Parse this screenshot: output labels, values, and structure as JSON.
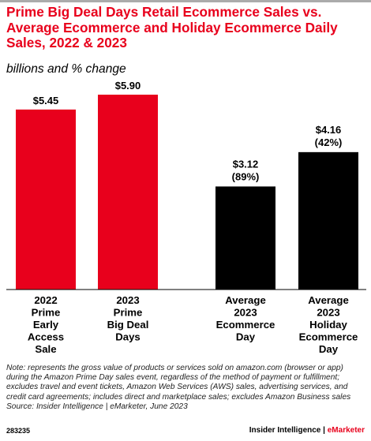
{
  "header": {
    "title": "Prime Big Deal Days Retail Ecommerce Sales vs. Average Ecommerce and Holiday Ecommerce Daily Sales, 2022 & 2023",
    "subtitle": "billions and % change"
  },
  "chart_data": {
    "type": "bar",
    "title": "Prime Big Deal Days Retail Ecommerce Sales vs. Average Ecommerce and Holiday Ecommerce Daily Sales, 2022 & 2023",
    "subtitle": "billions and % change",
    "xlabel": "",
    "ylabel": "",
    "grid": false,
    "categories": [
      [
        "2022",
        "Prime",
        "Early",
        "Access",
        "Sale"
      ],
      [
        "2023",
        "Prime",
        "Big Deal",
        "Days"
      ],
      [
        "Average",
        "2023",
        "Ecommerce",
        "Day"
      ],
      [
        "Average",
        "2023",
        "Holiday",
        "Ecommerce",
        "Day"
      ]
    ],
    "values": [
      5.45,
      5.9,
      3.12,
      4.16
    ],
    "value_labels": [
      "$5.45",
      "$5.90",
      "$3.12",
      "$4.16"
    ],
    "change_labels": [
      "",
      "",
      "(89%)",
      "(42%)"
    ],
    "bar_colors": [
      "#e8001c",
      "#e8001c",
      "#000000",
      "#000000"
    ],
    "ylim": [
      0,
      6.5
    ]
  },
  "footer": {
    "note": "Note: represents the gross value of products or services sold on amazon.com (browser or app) during the Amazon Prime Day sales event, regardless of the method of payment or fulfillment; excludes travel and event tickets, Amazon Web Services (AWS) sales, advertising services, and credit card agreements; includes direct and marketplace sales; excludes Amazon Business sales",
    "source": "Source: Insider Intelligence | eMarketer, June 2023",
    "chart_id": "283235",
    "brand_left": "Insider Intelligence",
    "brand_sep": " | ",
    "brand_right": "eMarketer"
  }
}
